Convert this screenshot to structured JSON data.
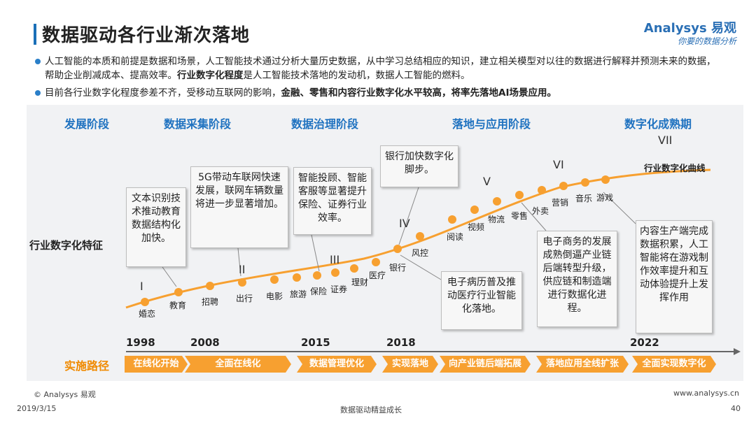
{
  "header": {
    "title": "数据驱动各行业渐次落地",
    "logo_text": "Analysys 易观",
    "logo_sub": "你要的数据分析"
  },
  "bullets": {
    "b1_part1": "人工智能的本质和前提是数据和场景，人工智能技术通过分析大量历史数据，从中学习总结相应的知识，建立相关模型对以往的数据进行解释并预测未来的数据，帮助企业削减成本、提高效率。",
    "b1_bold": "行业数字化程度",
    "b1_part2": "是人工智能技术落地的发动机，数据人工智能的燃料。",
    "b2_part1": "目前各行业数字化程度参差不齐，受移动互联网的影响，",
    "b2_bold": "金融、零售和内容行业数字化水平较高，将率先落地AI场景应用。"
  },
  "stages": {
    "label": "发展阶段",
    "s1": "数据采集阶段",
    "s2": "数据治理阶段",
    "s3": "落地与应用阶段",
    "s4": "数字化成熟期"
  },
  "side_label": "行业数字化特征",
  "curve_label": "行业数字化曲线",
  "romans": {
    "r1": "I",
    "r2": "II",
    "r3": "III",
    "r4": "IV",
    "r5": "V",
    "r6": "VI",
    "r7": "VII"
  },
  "events": {
    "e1": "婚恋",
    "e2": "教育",
    "e3": "招聘",
    "e4": "出行",
    "e5": "电影",
    "e6": "旅游",
    "e7": "保险",
    "e8": "证券",
    "e9": "理财",
    "e10": "医疗",
    "e11": "银行",
    "e12": "风控",
    "e13": "阅读",
    "e14": "视频",
    "e15": "物流",
    "e16": "零售",
    "e17": "外卖",
    "e18": "营销",
    "e19": "音乐",
    "e20": "游戏"
  },
  "boxes": {
    "b1": "文本识别技术推动教育数据结构化加快。",
    "b2": "5G带动车联网快速发展，联网车辆数量将进一步显著增加。",
    "b3": "智能投顾、智能客服等显著提升保险、证券行业效率。",
    "b4": "银行加快数字化脚步。",
    "b5": "电子病历普及推动医疗行业智能化落地。",
    "b6": "电子商务的发展成熟倒逼产业链后端转型升级，供应链和制造端进行数据化进程。",
    "b7": "内容生产端完成数据积累，人工智能将在游戏制作效率提升和互动体验提升上发挥作用"
  },
  "years": {
    "y1": "1998",
    "y2": "2008",
    "y3": "2015",
    "y4": "2018",
    "y5": "2022"
  },
  "route": {
    "label": "实施路径",
    "r1": "在线化开始",
    "r2": "全面在线化",
    "r3": "数据管理优化",
    "r4": "实现落地",
    "r5": "向产业链后端拓展",
    "r6": "落地应用全线扩张",
    "r7": "全面实现数字化"
  },
  "footer": {
    "copyright": "© Analysys 易观",
    "date": "2019/3/15",
    "center": "数据驱动精益成长",
    "url": "www.analysys.cn",
    "page": "40"
  },
  "colors": {
    "accent": "#f7a030",
    "stage_blue": "#1f72c0",
    "bullet_blue": "#2a7fc9"
  }
}
